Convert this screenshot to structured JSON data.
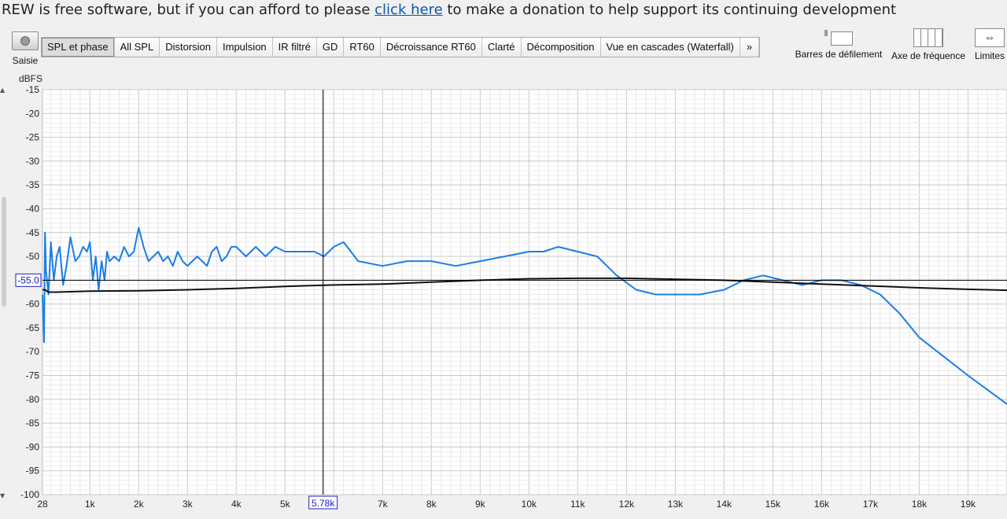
{
  "banner": {
    "pre": "REW is free software, but if you can afford to please ",
    "link": "click here",
    "post": " to make a donation to help support its continuing development"
  },
  "toolbar": {
    "capture_label": "Saisie",
    "tabs": [
      "SPL et phase",
      "All SPL",
      "Distorsion",
      "Impulsion",
      "IR filtré",
      "GD",
      "RT60",
      "Décroissance RT60",
      "Clarté",
      "Décomposition",
      "Vue en cascades (Waterfall)"
    ],
    "active_tab": 0,
    "more_label": "»",
    "scrollbars_label": "Barres de défilement",
    "freq_axis_label": "Axe de fréquence",
    "limits_label": "Limites"
  },
  "chart_data": {
    "type": "line",
    "ylabel": "dBFS",
    "ylim": [
      -100,
      -15
    ],
    "yticks": [
      "-15",
      "-20",
      "-25",
      "-30",
      "-35",
      "-40",
      "-45",
      "-50",
      "-55",
      "-60",
      "-65",
      "-70",
      "-75",
      "-80",
      "-85",
      "-90",
      "-95",
      "-100"
    ],
    "xlim": [
      28,
      19800
    ],
    "xticks": [
      "28",
      "1k",
      "2k",
      "3k",
      "4k",
      "5k",
      "7k",
      "8k",
      "9k",
      "10k",
      "11k",
      "12k",
      "13k",
      "14k",
      "15k",
      "16k",
      "17k",
      "18k",
      "19k"
    ],
    "x_cursor_label": "5.78k",
    "y_cursor_label": "-55.0",
    "x_cursor_value": 5780,
    "y_cursor_value": -55.0,
    "grid": true,
    "series": [
      {
        "color": "#1a7ee6",
        "x": [
          28,
          60,
          80,
          100,
          150,
          200,
          260,
          320,
          380,
          450,
          520,
          600,
          700,
          780,
          860,
          940,
          1000,
          1060,
          1120,
          1180,
          1240,
          1300,
          1350,
          1400,
          1500,
          1600,
          1700,
          1800,
          1900,
          2000,
          2100,
          2200,
          2300,
          2400,
          2500,
          2600,
          2700,
          2800,
          2900,
          3000,
          3100,
          3200,
          3300,
          3400,
          3500,
          3600,
          3700,
          3800,
          3900,
          4000,
          4200,
          4300,
          4400,
          4600,
          4800,
          5000,
          5200,
          5400,
          5600,
          5800,
          6000,
          6200,
          6500,
          7000,
          7500,
          8000,
          8500,
          9000,
          9500,
          10000,
          10300,
          10600,
          11000,
          11400,
          11800,
          12200,
          12600,
          13000,
          13500,
          14000,
          14400,
          14800,
          15200,
          15600,
          16000,
          16400,
          16800,
          17200,
          17600,
          18000,
          18500,
          19000,
          19400,
          19800
        ],
        "y": [
          -58,
          -68,
          -45,
          -53,
          -58,
          -47,
          -55,
          -50,
          -48,
          -56,
          -52,
          -46,
          -51,
          -50,
          -48,
          -49,
          -47,
          -55,
          -50,
          -57,
          -51,
          -55,
          -49,
          -51,
          -50,
          -51,
          -48,
          -50,
          -49,
          -44,
          -48,
          -51,
          -50,
          -49,
          -51,
          -50,
          -52,
          -49,
          -51,
          -52,
          -51,
          -50,
          -51,
          -52,
          -49,
          -48,
          -51,
          -50,
          -48,
          -48,
          -50,
          -49,
          -48,
          -50,
          -48,
          -49,
          -49,
          -49,
          -49,
          -50,
          -48,
          -47,
          -51,
          -52,
          -51,
          -51,
          -52,
          -51,
          -50,
          -49,
          -49,
          -48,
          -49,
          -50,
          -54,
          -57,
          -58,
          -58,
          -58,
          -57,
          -55,
          -54,
          -55,
          -56,
          -55,
          -55,
          -56,
          -58,
          -62,
          -67,
          -71,
          -75,
          -78,
          -81
        ]
      },
      {
        "color": "#111111",
        "x": [
          28,
          80,
          150,
          300,
          1000,
          2000,
          3000,
          4000,
          5000,
          6000,
          7000,
          8000,
          9000,
          10000,
          11000,
          12000,
          13000,
          14000,
          15000,
          16000,
          17000,
          18000,
          19000,
          19800
        ],
        "y": [
          -57,
          -57,
          -57.5,
          -57.5,
          -57.3,
          -57.2,
          -57,
          -56.7,
          -56.3,
          -56,
          -55.8,
          -55.4,
          -55,
          -54.7,
          -54.6,
          -54.6,
          -54.8,
          -55,
          -55.4,
          -55.8,
          -56.2,
          -56.6,
          -56.9,
          -57.1
        ]
      }
    ]
  }
}
